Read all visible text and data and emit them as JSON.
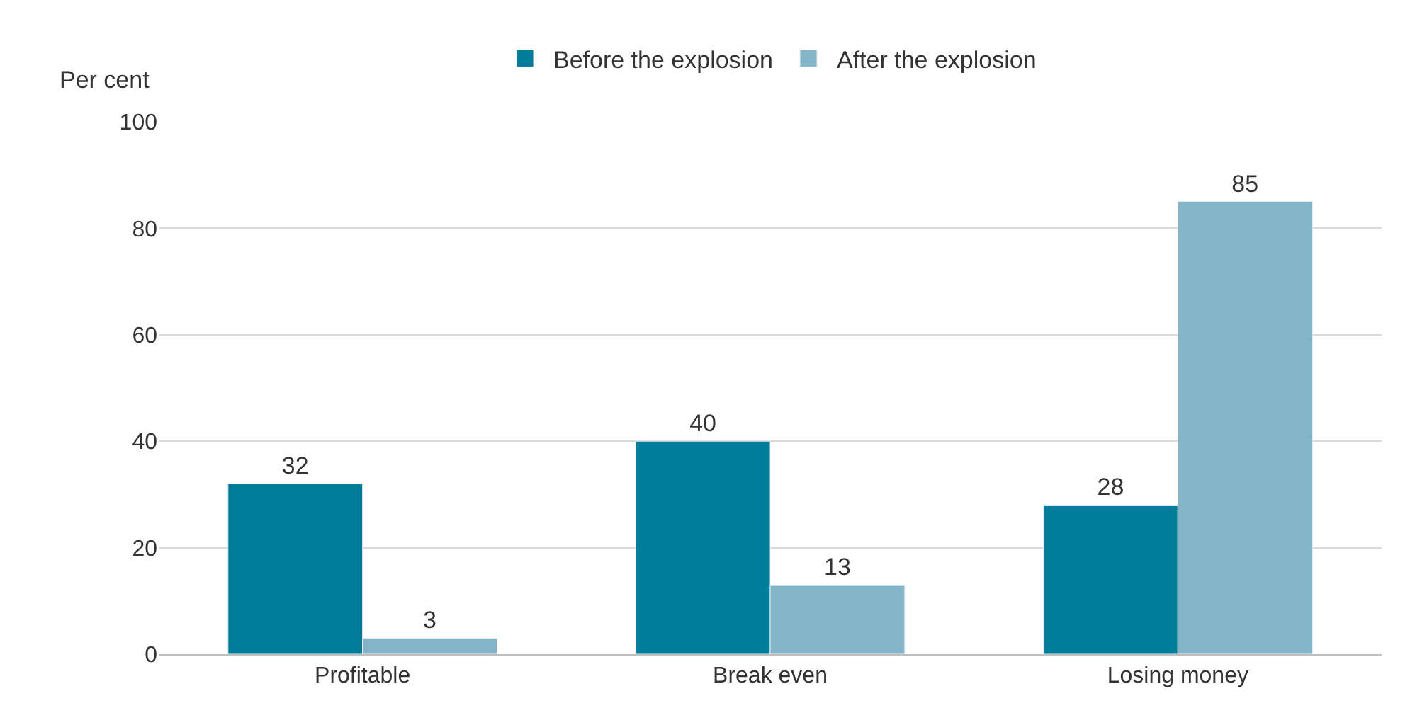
{
  "chart_data": {
    "type": "bar",
    "ylabel": "Per cent",
    "categories": [
      "Profitable",
      "Break even",
      "Losing money"
    ],
    "series": [
      {
        "name": "Before the explosion",
        "color": "#007e99",
        "values": [
          32,
          40,
          28
        ]
      },
      {
        "name": "After the explosion",
        "color": "#84b4c8",
        "values": [
          3,
          13,
          85
        ]
      }
    ],
    "ylim": [
      0,
      100
    ],
    "yticks": [
      0,
      20,
      40,
      60,
      80,
      100
    ],
    "grid": "y",
    "legend": "top",
    "data_labels": true
  }
}
